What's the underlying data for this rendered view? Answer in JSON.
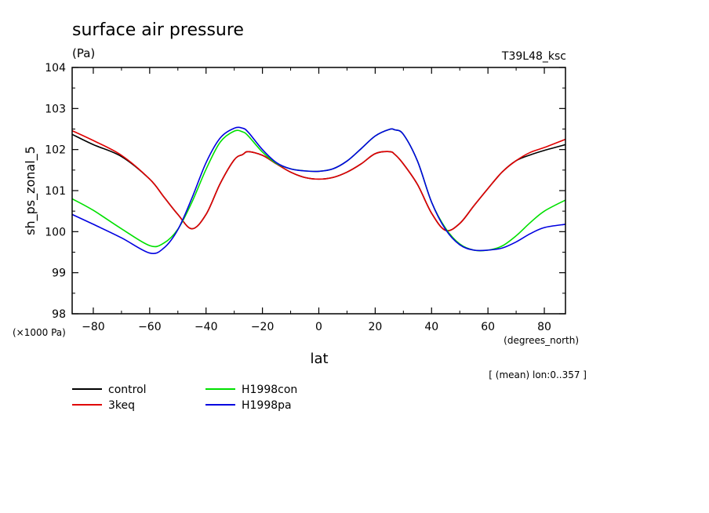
{
  "chart_data": {
    "type": "line",
    "title": "surface air pressure",
    "units": "(Pa)",
    "experiment": "T39L48_ksc",
    "xlabel": "lat",
    "x_units": "(degrees_north)",
    "ylabel": "sh_ps_zonal_5",
    "y_scale_note": "(×1000 Pa)",
    "footnote": "[ (mean) lon:0..357 ]",
    "xlim": [
      -87.5,
      87.5
    ],
    "ylim": [
      98,
      104
    ],
    "x_ticks": [
      -80,
      -60,
      -40,
      -20,
      0,
      20,
      40,
      60,
      80
    ],
    "x_tick_labels": [
      "−80",
      "−60",
      "−40",
      "−20",
      "0",
      "20",
      "40",
      "60",
      "80"
    ],
    "y_ticks": [
      98,
      99,
      100,
      101,
      102,
      103,
      104
    ],
    "y_tick_labels": [
      "98",
      "99",
      "100",
      "101",
      "102",
      "103",
      "104"
    ],
    "x": [
      -87.5,
      -80,
      -70,
      -60,
      -55,
      -50,
      -45,
      -40,
      -35,
      -30,
      -27,
      -25,
      -20,
      -15,
      -10,
      -5,
      0,
      5,
      10,
      15,
      20,
      25,
      27,
      30,
      35,
      40,
      45,
      50,
      55,
      60,
      65,
      70,
      75,
      80,
      87.5
    ],
    "series": [
      {
        "name": "control",
        "color": "#000000",
        "values": [
          102.37,
          102.12,
          101.83,
          101.28,
          100.85,
          100.42,
          100.07,
          100.42,
          101.17,
          101.75,
          101.88,
          101.95,
          101.86,
          101.65,
          101.45,
          101.32,
          101.28,
          101.32,
          101.45,
          101.65,
          101.9,
          101.95,
          101.88,
          101.65,
          101.15,
          100.45,
          100.03,
          100.2,
          100.63,
          101.05,
          101.45,
          101.73,
          101.87,
          101.98,
          102.12
        ]
      },
      {
        "name": "3keq",
        "color": "#e00000",
        "values": [
          102.46,
          102.22,
          101.86,
          101.28,
          100.85,
          100.42,
          100.07,
          100.42,
          101.17,
          101.75,
          101.88,
          101.95,
          101.86,
          101.65,
          101.45,
          101.32,
          101.28,
          101.32,
          101.45,
          101.65,
          101.9,
          101.95,
          101.88,
          101.65,
          101.15,
          100.45,
          100.03,
          100.2,
          100.63,
          101.05,
          101.45,
          101.73,
          101.93,
          102.05,
          102.25
        ]
      },
      {
        "name": "H1998con",
        "color": "#00e000",
        "values": [
          100.8,
          100.52,
          100.07,
          99.66,
          99.72,
          100.06,
          100.72,
          101.52,
          102.18,
          102.45,
          102.43,
          102.33,
          101.94,
          101.66,
          101.53,
          101.48,
          101.47,
          101.53,
          101.72,
          102.02,
          102.33,
          102.49,
          102.48,
          102.37,
          101.72,
          100.72,
          100.08,
          99.7,
          99.55,
          99.55,
          99.65,
          99.9,
          100.22,
          100.5,
          100.77
        ]
      },
      {
        "name": "H1998pa",
        "color": "#0000e0",
        "values": [
          100.42,
          100.18,
          99.85,
          99.48,
          99.6,
          100.05,
          100.82,
          101.68,
          102.28,
          102.52,
          102.52,
          102.42,
          102.0,
          101.68,
          101.53,
          101.48,
          101.47,
          101.53,
          101.72,
          102.02,
          102.33,
          102.49,
          102.48,
          102.37,
          101.72,
          100.72,
          100.05,
          99.68,
          99.55,
          99.55,
          99.6,
          99.75,
          99.95,
          100.1,
          100.18
        ]
      }
    ],
    "legend_position": "bottom-left"
  }
}
